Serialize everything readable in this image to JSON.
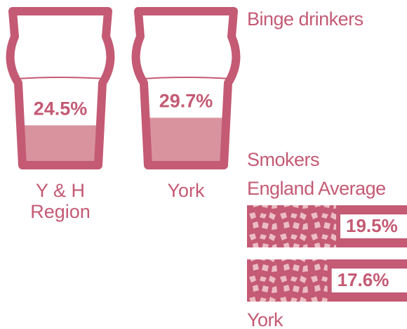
{
  "chart_data": [
    {
      "type": "glass",
      "title": "Binge drinkers",
      "categories": [
        "Y & H Region",
        "York"
      ],
      "values": [
        24.5,
        29.7
      ],
      "value_labels": [
        "24.5%",
        "29.7%"
      ],
      "color": "#c45a74",
      "fill_color": "#d9939f",
      "ylim": [
        0,
        100
      ]
    },
    {
      "type": "bar",
      "title": "Smokers",
      "categories": [
        "England Average",
        "York"
      ],
      "values": [
        19.5,
        17.6
      ],
      "value_labels": [
        "19.5%",
        "17.6%"
      ],
      "color": "#c45a74",
      "pattern_color": "#ecbcc4",
      "xlim": [
        0,
        35
      ]
    }
  ]
}
